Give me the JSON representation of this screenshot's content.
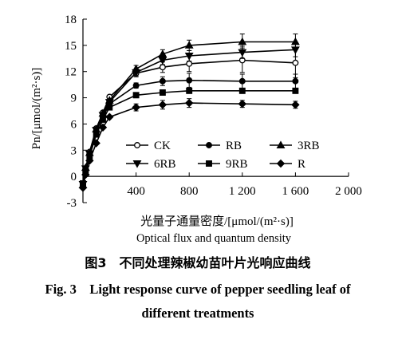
{
  "chart_data": {
    "type": "line",
    "xlabel_cn": "光量子通量密度/[μmol/(m²·s)]",
    "xlabel_en": "Optical flux and quantum density",
    "ylabel": "Pn/[μmol/(m²·s)]",
    "xlim": [
      0,
      2000
    ],
    "ylim": [
      -3,
      18
    ],
    "x_ticks": [
      400,
      800,
      1200,
      1600,
      2000
    ],
    "x_tick_labels": [
      "400",
      "800",
      "1 200",
      "1 600",
      "2 000"
    ],
    "y_ticks": [
      -3,
      0,
      3,
      6,
      9,
      12,
      15,
      18
    ],
    "y_tick_labels": [
      "-3",
      "0",
      "3",
      "6",
      "9",
      "12",
      "15",
      "18"
    ],
    "grid": false,
    "legend_position": "inside-lower-right",
    "x": [
      0,
      20,
      50,
      100,
      150,
      200,
      400,
      600,
      800,
      1200,
      1600
    ],
    "series": [
      {
        "name": "CK",
        "marker": "circle-open",
        "values": [
          -1.0,
          0.8,
          2.8,
          5.5,
          7.3,
          9.1,
          11.8,
          12.5,
          12.9,
          13.3,
          13.0
        ],
        "err": [
          0,
          0,
          0,
          0,
          0,
          0,
          0.4,
          0.6,
          0.9,
          1.4,
          1.7
        ]
      },
      {
        "name": "RB",
        "marker": "circle-filled",
        "values": [
          -0.8,
          0.6,
          2.5,
          5.2,
          6.8,
          8.3,
          10.4,
          10.9,
          11.0,
          10.9,
          10.9
        ],
        "err": [
          0,
          0,
          0,
          0,
          0,
          0,
          0.3,
          0.5,
          0.8,
          0.8,
          0.8
        ]
      },
      {
        "name": "3RB",
        "marker": "triangle-up",
        "values": [
          -1.0,
          1.0,
          2.7,
          5.4,
          7.2,
          8.7,
          12.3,
          14.0,
          15.0,
          15.4,
          15.4
        ],
        "err": [
          0,
          0,
          0,
          0,
          0,
          0,
          0.4,
          0.5,
          0.6,
          0.9,
          0.9
        ]
      },
      {
        "name": "6RB",
        "marker": "triangle-down",
        "values": [
          -0.9,
          0.9,
          2.6,
          5.3,
          7.0,
          8.5,
          11.9,
          13.3,
          13.8,
          14.2,
          14.5
        ],
        "err": [
          0,
          0,
          0,
          0,
          0,
          0,
          0.4,
          0.5,
          0.6,
          0.7,
          0.8
        ]
      },
      {
        "name": "9RB",
        "marker": "square",
        "values": [
          -0.8,
          0.6,
          2.3,
          4.8,
          6.5,
          7.9,
          9.3,
          9.6,
          9.8,
          9.8,
          9.8
        ],
        "err": [
          0,
          0,
          0,
          0,
          0,
          0,
          0.3,
          0.3,
          0.3,
          0.3,
          0.3
        ]
      },
      {
        "name": "R",
        "marker": "diamond",
        "values": [
          -1.3,
          0.2,
          1.8,
          3.8,
          5.6,
          6.8,
          7.9,
          8.2,
          8.4,
          8.3,
          8.2
        ],
        "err": [
          0,
          0,
          0,
          0,
          0,
          0,
          0.4,
          0.5,
          0.5,
          0.4,
          0.4
        ]
      }
    ]
  },
  "caption": {
    "cn": "图3　不同处理辣椒幼苗叶片光响应曲线",
    "en_line1": "Fig. 3　Light response curve of pepper seedling leaf of",
    "en_line2": "different treatments"
  },
  "colors": {
    "ink": "#000000",
    "background": "#ffffff"
  }
}
